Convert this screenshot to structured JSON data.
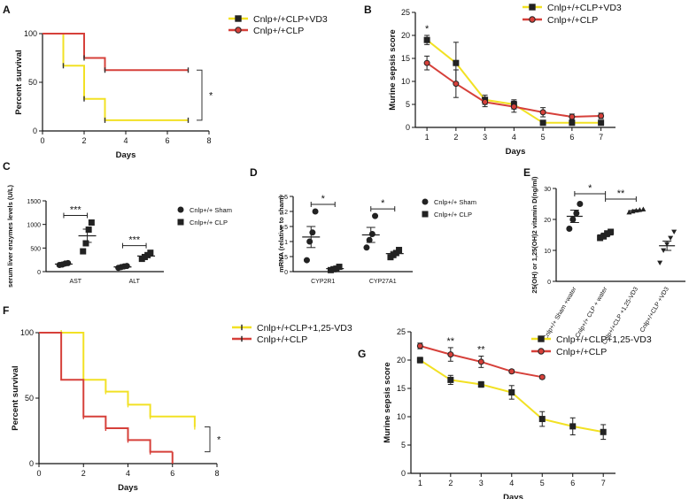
{
  "figure": {
    "panel_letters": [
      "A",
      "B",
      "C",
      "D",
      "E",
      "F",
      "G"
    ]
  },
  "chart_data": [
    {
      "id": "A",
      "type": "line",
      "title": "",
      "xlabel": "Days",
      "ylabel": "Percent survival",
      "xlim": [
        0,
        8
      ],
      "ylim": [
        0,
        100
      ],
      "xticks": [
        0,
        2,
        4,
        6,
        8
      ],
      "yticks": [
        0,
        50,
        100
      ],
      "series": [
        {
          "name": "Cnlp+/+CLP+VD3",
          "color": "#f2e124",
          "marker": "square",
          "x": [
            0,
            1,
            1,
            2,
            2,
            3,
            3,
            7
          ],
          "values": [
            100,
            100,
            67,
            67,
            33,
            33,
            11,
            11
          ],
          "censor": [
            [
              1,
              67
            ],
            [
              2,
              33
            ],
            [
              3,
              11
            ],
            [
              7,
              11
            ]
          ]
        },
        {
          "name": "Cnlp+/+CLP",
          "color": "#d6403a",
          "marker": "circle",
          "x": [
            0,
            2,
            2,
            3,
            3,
            7
          ],
          "values": [
            100,
            100,
            75,
            75,
            62.5,
            62.5
          ],
          "censor": [
            [
              2,
              75
            ],
            [
              3,
              62.5
            ],
            [
              7,
              62.5
            ]
          ]
        }
      ],
      "significance": "*"
    },
    {
      "id": "B",
      "type": "line",
      "title": "",
      "xlabel": "Days",
      "ylabel": "Murine sepsis score",
      "xlim": [
        0.6,
        7.5
      ],
      "ylim": [
        0,
        25
      ],
      "xticks": [
        1,
        2,
        3,
        4,
        5,
        6,
        7
      ],
      "yticks": [
        0,
        5,
        10,
        15,
        20,
        25
      ],
      "series": [
        {
          "name": "Cnlp+/+CLP+VD3",
          "color": "#f2e124",
          "marker": "square",
          "x": [
            1,
            2,
            3,
            4,
            5,
            6,
            7
          ],
          "values": [
            19,
            14,
            6,
            5,
            1,
            1,
            1
          ],
          "err": [
            1,
            4.5,
            1,
            1,
            0.3,
            0.3,
            0.3
          ]
        },
        {
          "name": "Cnlp+/+CLP",
          "color": "#d6403a",
          "marker": "circle",
          "x": [
            1,
            2,
            3,
            4,
            5,
            6,
            7
          ],
          "values": [
            14,
            9.5,
            5.5,
            4.5,
            3.3,
            2.3,
            2.5
          ],
          "err": [
            1.5,
            3,
            1,
            1.2,
            1,
            0.6,
            0.6
          ]
        }
      ],
      "annotations": [
        {
          "x": 1,
          "text": "*"
        }
      ]
    },
    {
      "id": "C",
      "type": "scatter",
      "title": "",
      "xlabel": "",
      "ylabel": "serum liver enzymes levels (U/L)",
      "ylim": [
        0,
        1500
      ],
      "yticks": [
        0,
        500,
        1000,
        1500
      ],
      "categories": [
        "AST",
        "ALT"
      ],
      "series": [
        {
          "name": "Cnlp+/+ Sham",
          "marker": "circle",
          "means": [
            160,
            100
          ],
          "sem": [
            20,
            15
          ],
          "points": [
            [
              140,
              150,
              170,
              180
            ],
            [
              80,
              95,
              110,
              120
            ]
          ]
        },
        {
          "name": "Cnlp+/+ CLP",
          "marker": "square",
          "means": [
            760,
            330
          ],
          "sem": [
            140,
            30
          ],
          "points": [
            [
              430,
              600,
              890,
              1040
            ],
            [
              270,
              310,
              350,
              400
            ]
          ]
        }
      ],
      "significance": [
        {
          "category": "AST",
          "text": "***"
        },
        {
          "category": "ALT",
          "text": "***"
        }
      ]
    },
    {
      "id": "D",
      "type": "scatter",
      "title": "",
      "xlabel": "",
      "ylabel": "mRNA (relative to sham)",
      "ylim": [
        0,
        2.5
      ],
      "yticks": [
        0,
        0.5,
        1,
        1.5,
        2,
        2.5
      ],
      "categories": [
        "CYP2R1",
        "CYP27A1"
      ],
      "series": [
        {
          "name": "Cnlp+/+ Sham",
          "marker": "circle",
          "means": [
            1.15,
            1.22
          ],
          "sem": [
            0.35,
            0.25
          ],
          "points": [
            [
              0.38,
              1.0,
              1.3,
              2.0
            ],
            [
              0.8,
              1.05,
              1.25,
              1.85
            ]
          ]
        },
        {
          "name": "Cnlp+/+ CLP",
          "marker": "square",
          "means": [
            0.1,
            0.6
          ],
          "sem": [
            0.03,
            0.07
          ],
          "points": [
            [
              0.05,
              0.08,
              0.1,
              0.16
            ],
            [
              0.48,
              0.55,
              0.62,
              0.72
            ]
          ]
        }
      ],
      "significance": [
        {
          "category": "CYP2R1",
          "text": "*"
        },
        {
          "category": "CYP27A1",
          "text": "*"
        }
      ]
    },
    {
      "id": "E",
      "type": "scatter",
      "title": "",
      "xlabel": "",
      "ylabel": "25(OH) or 1,25(OH)2 vitamin D(ng/ml)",
      "ylim": [
        0,
        30
      ],
      "yticks": [
        0,
        10,
        20,
        30
      ],
      "categories": [
        "Cnlp+/+ Sham +water",
        "Cnlp+/+ CLP + water",
        "Cnlp+/+CLP +1,25-VD3",
        "Cnlp+/+CLP +VD3"
      ],
      "groups": [
        {
          "marker": "circle",
          "mean": 21,
          "sem": 2,
          "points": [
            17,
            20,
            22,
            25
          ]
        },
        {
          "marker": "square",
          "mean": 15,
          "sem": 0.6,
          "points": [
            14,
            14.5,
            15.5,
            16
          ]
        },
        {
          "marker": "triangle-up",
          "mean": 22.8,
          "sem": 0.3,
          "points": [
            22.3,
            22.6,
            22.9,
            23.1,
            23.3
          ]
        },
        {
          "marker": "triangle-down",
          "mean": 11.5,
          "sem": 1.5,
          "points": [
            6,
            10,
            12,
            14,
            16
          ]
        }
      ],
      "significance": [
        {
          "from": 0,
          "to": 1,
          "text": "*"
        },
        {
          "from": 1,
          "to": 2,
          "text": "**"
        }
      ]
    },
    {
      "id": "F",
      "type": "line",
      "title": "",
      "xlabel": "Days",
      "ylabel": "Percent survival",
      "xlim": [
        0,
        8
      ],
      "ylim": [
        0,
        100
      ],
      "xticks": [
        0,
        2,
        4,
        6,
        8
      ],
      "yticks": [
        0,
        50,
        100
      ],
      "series": [
        {
          "name": "Cnlp+/+CLP+1,25-VD3",
          "color": "#f2e124",
          "marker": "bar",
          "x": [
            0,
            1,
            1,
            2,
            2,
            3,
            3,
            4,
            4,
            5,
            5,
            7,
            7
          ],
          "values": [
            100,
            100,
            100,
            100,
            64,
            64,
            55,
            55,
            45,
            45,
            36,
            36,
            28
          ],
          "censor": [
            [
              1,
              100
            ],
            [
              3,
              55
            ],
            [
              4,
              45
            ],
            [
              5,
              36
            ],
            [
              7,
              28
            ]
          ]
        },
        {
          "name": "Cnlp+/+CLP",
          "color": "#d6403a",
          "marker": "bar",
          "x": [
            0,
            1,
            1,
            2,
            2,
            3,
            3,
            4,
            4,
            5,
            5,
            6
          ],
          "values": [
            100,
            100,
            64,
            64,
            36,
            36,
            27,
            27,
            18,
            18,
            9,
            9
          ],
          "drop": [
            6,
            0
          ],
          "censor": [
            [
              2,
              36
            ],
            [
              3,
              27
            ],
            [
              4,
              18
            ],
            [
              5,
              9
            ]
          ]
        }
      ],
      "significance": "*"
    },
    {
      "id": "G",
      "type": "line",
      "title": "",
      "xlabel": "Days",
      "ylabel": "Murine sepsis score",
      "xlim": [
        0.7,
        7.4
      ],
      "ylim": [
        0,
        25
      ],
      "xticks": [
        1,
        2,
        3,
        4,
        5,
        6,
        7
      ],
      "yticks": [
        0,
        5,
        10,
        15,
        20,
        25
      ],
      "series": [
        {
          "name": "Cnlp+/+CLP+1,25-VD3",
          "color": "#f2e124",
          "marker": "square",
          "x": [
            1,
            2,
            3,
            4,
            5,
            6,
            7
          ],
          "values": [
            20,
            16.5,
            15.7,
            14.3,
            9.6,
            8.3,
            7.3
          ],
          "err": [
            0.5,
            0.8,
            0.5,
            1.2,
            1.3,
            1.5,
            1.3
          ]
        },
        {
          "name": "Cnlp+/+CLP",
          "color": "#d6403a",
          "marker": "circle",
          "x": [
            1,
            2,
            3,
            4,
            5
          ],
          "values": [
            22.5,
            21,
            19.7,
            18,
            17
          ],
          "err": [
            0.5,
            1.2,
            1,
            0.3,
            0.3
          ]
        }
      ],
      "annotations": [
        {
          "x": 2,
          "text": "**"
        },
        {
          "x": 3,
          "text": "**"
        }
      ]
    }
  ]
}
